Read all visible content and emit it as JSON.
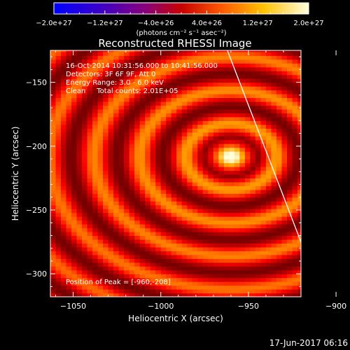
{
  "chart_data": {
    "type": "heatmap",
    "title": "Reconstructed RHESSI Image",
    "xlabel": "Heliocentric X (arcsec)",
    "ylabel": "Heliocentric Y (arcsec)",
    "xlim": [
      -1063,
      -920
    ],
    "ylim": [
      -318,
      -125
    ],
    "x_ticks": [
      -1050,
      -1000,
      -950,
      -900
    ],
    "x_tick_labels": [
      "−1050",
      "−1000",
      "−950",
      "−900"
    ],
    "y_ticks": [
      -150,
      -200,
      -250,
      -300
    ],
    "y_tick_labels": [
      "−150",
      "−200",
      "−250",
      "−300"
    ],
    "colormap": "red-temperature",
    "peak": [
      -960,
      -208
    ],
    "colorbar": {
      "min": -2e+27,
      "max": 2e+27,
      "tick_labels": [
        "−2.0e+27",
        "−1.2e+27",
        "−4.0e+26",
        "4.0e+26",
        "1.2e+27",
        "2.0e+27"
      ],
      "unit_label": "(photons cm⁻² s⁻¹ asec⁻²)"
    },
    "annotations": [
      "16-Oct-2014 10:31:56.000 to 10:41:56.000",
      "Detectors: 3F 6F 9F, Att 0",
      "Energy Range: 3.0 - 6.0 keV",
      "Clean     Total counts: 2.01E+05",
      "Position of Peak = [-960,-208]"
    ],
    "limb_line": {
      "x": [
        -962,
        -908
      ],
      "y": [
        -125,
        -318
      ]
    }
  },
  "footer_date": "17-Jun-2017 06:16",
  "colors": {
    "background": "#000000",
    "text": "#ffffff"
  }
}
